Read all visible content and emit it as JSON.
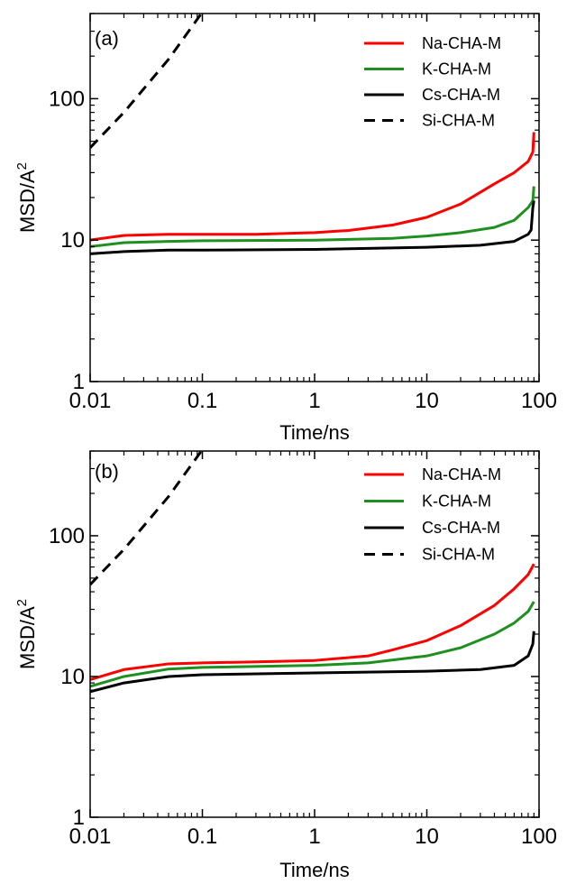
{
  "chart_data": [
    {
      "type": "line",
      "panel_label": "(a)",
      "xlabel": "Time/ns",
      "ylabel": "MSD/A",
      "ylabel_sup": "2",
      "xscale": "log",
      "yscale": "log",
      "xlim": [
        0.01,
        100
      ],
      "ylim": [
        1,
        400
      ],
      "xticks": [
        0.01,
        0.1,
        1,
        10,
        100
      ],
      "xtick_labels": [
        "0.01",
        "0.1",
        "1",
        "10",
        "100"
      ],
      "yticks": [
        1,
        10,
        100
      ],
      "ytick_labels": [
        "1",
        "10",
        "100"
      ],
      "legend_position": "top-right",
      "series": [
        {
          "name": "Na-CHA-M",
          "color": "#ff0000",
          "dash": "solid",
          "x": [
            0.01,
            0.02,
            0.05,
            0.1,
            0.3,
            1,
            2,
            5,
            10,
            20,
            40,
            60,
            80,
            88,
            90
          ],
          "y": [
            10,
            10.8,
            11,
            11,
            11,
            11.3,
            11.7,
            12.8,
            14.5,
            18,
            25,
            30,
            36,
            42,
            58
          ]
        },
        {
          "name": "K-CHA-M",
          "color": "#1f8f1f",
          "dash": "solid",
          "x": [
            0.01,
            0.02,
            0.05,
            0.1,
            1,
            5,
            10,
            20,
            40,
            60,
            80,
            88,
            90
          ],
          "y": [
            9,
            9.6,
            9.8,
            9.9,
            10,
            10.3,
            10.7,
            11.3,
            12.3,
            13.8,
            17,
            19,
            24
          ]
        },
        {
          "name": "Cs-CHA-M",
          "color": "#000000",
          "dash": "solid",
          "x": [
            0.01,
            0.02,
            0.05,
            0.1,
            1,
            10,
            30,
            60,
            80,
            85,
            88,
            90
          ],
          "y": [
            8,
            8.3,
            8.5,
            8.5,
            8.6,
            8.9,
            9.2,
            9.8,
            11,
            11.8,
            17,
            19
          ]
        },
        {
          "name": "Si-CHA-M",
          "color": "#000000",
          "dash": "dashed",
          "x": [
            0.01,
            0.02,
            0.05,
            0.098
          ],
          "y": [
            45,
            80,
            190,
            400
          ]
        }
      ]
    },
    {
      "type": "line",
      "panel_label": "(b)",
      "xlabel": "Time/ns",
      "ylabel": "MSD/A",
      "ylabel_sup": "2",
      "xscale": "log",
      "yscale": "log",
      "xlim": [
        0.01,
        100
      ],
      "ylim": [
        1,
        400
      ],
      "xticks": [
        0.01,
        0.1,
        1,
        10,
        100
      ],
      "xtick_labels": [
        "0.01",
        "0.1",
        "1",
        "10",
        "100"
      ],
      "yticks": [
        1,
        10,
        100
      ],
      "ytick_labels": [
        "1",
        "10",
        "100"
      ],
      "legend_position": "top-right",
      "series": [
        {
          "name": "Na-CHA-M",
          "color": "#ff0000",
          "dash": "solid",
          "x": [
            0.01,
            0.02,
            0.05,
            0.1,
            0.3,
            1,
            3,
            5,
            10,
            20,
            40,
            60,
            80,
            90
          ],
          "y": [
            9.5,
            11.2,
            12.3,
            12.5,
            12.7,
            13,
            14,
            15.5,
            18,
            23,
            32,
            42,
            53,
            63
          ]
        },
        {
          "name": "K-CHA-M",
          "color": "#1f8f1f",
          "dash": "solid",
          "x": [
            0.01,
            0.02,
            0.05,
            0.1,
            1,
            3,
            10,
            20,
            40,
            60,
            80,
            90
          ],
          "y": [
            8.5,
            10,
            11.3,
            11.6,
            12,
            12.5,
            14,
            16,
            20,
            24,
            29,
            34
          ]
        },
        {
          "name": "Cs-CHA-M",
          "color": "#000000",
          "dash": "solid",
          "x": [
            0.01,
            0.02,
            0.05,
            0.1,
            1,
            10,
            30,
            60,
            80,
            88,
            90
          ],
          "y": [
            7.8,
            9,
            10,
            10.3,
            10.6,
            10.9,
            11.2,
            12,
            14,
            17,
            21
          ]
        },
        {
          "name": "Si-CHA-M",
          "color": "#000000",
          "dash": "dashed",
          "x": [
            0.01,
            0.02,
            0.05,
            0.098
          ],
          "y": [
            45,
            80,
            190,
            400
          ]
        }
      ]
    }
  ]
}
